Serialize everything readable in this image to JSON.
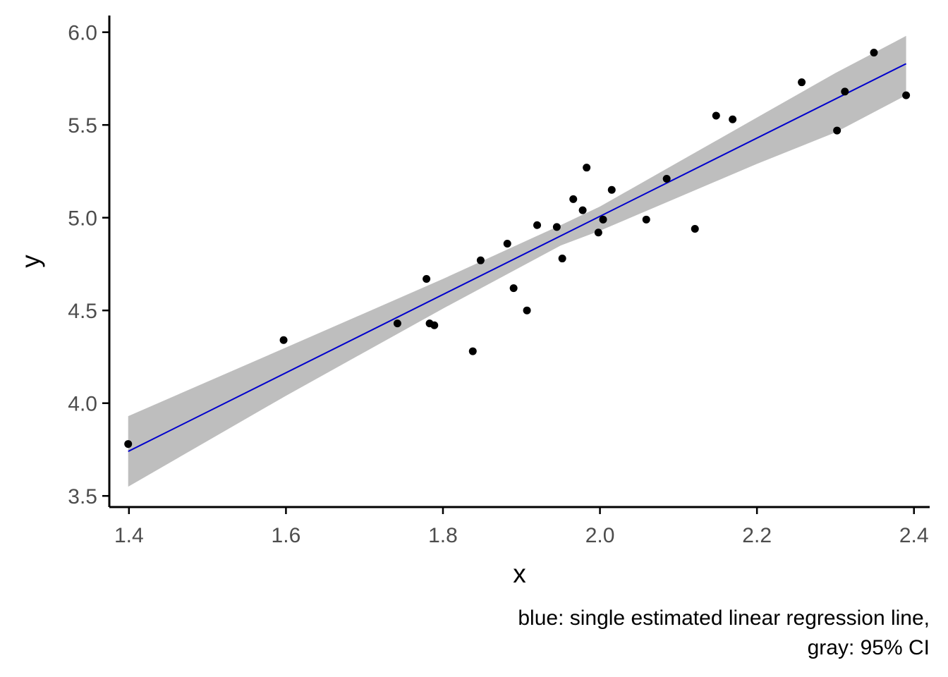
{
  "chart_data": {
    "type": "scatter",
    "title": "",
    "xlabel": "x",
    "ylabel": "y",
    "caption_lines": [
      "blue: single estimated linear regression line,",
      "gray: 95% CI"
    ],
    "xlim": [
      1.375,
      2.42
    ],
    "ylim": [
      3.44,
      6.09
    ],
    "x_ticks": [
      1.4,
      1.6,
      1.8,
      2.0,
      2.2,
      2.4
    ],
    "x_tick_labels": [
      "1.4",
      "1.6",
      "1.8",
      "2.0",
      "2.2",
      "2.4"
    ],
    "y_ticks": [
      3.5,
      4.0,
      4.5,
      5.0,
      5.5,
      6.0
    ],
    "y_tick_labels": [
      "3.5",
      "4.0",
      "4.5",
      "5.0",
      "5.5",
      "6.0"
    ],
    "grid": false,
    "colors": {
      "points": "#000000",
      "line": "#0000cc",
      "ribbon": "#bebebe",
      "axis": "#000000",
      "tick_text": "#4d4d4d"
    },
    "points": [
      {
        "x": 1.399,
        "y": 3.78
      },
      {
        "x": 1.597,
        "y": 4.34
      },
      {
        "x": 1.742,
        "y": 4.43
      },
      {
        "x": 1.779,
        "y": 4.67
      },
      {
        "x": 1.783,
        "y": 4.43
      },
      {
        "x": 1.789,
        "y": 4.42
      },
      {
        "x": 1.838,
        "y": 4.28
      },
      {
        "x": 1.848,
        "y": 4.77
      },
      {
        "x": 1.882,
        "y": 4.86
      },
      {
        "x": 1.89,
        "y": 4.62
      },
      {
        "x": 1.907,
        "y": 4.5
      },
      {
        "x": 1.92,
        "y": 4.96
      },
      {
        "x": 1.945,
        "y": 4.95
      },
      {
        "x": 1.952,
        "y": 4.78
      },
      {
        "x": 1.966,
        "y": 5.1
      },
      {
        "x": 1.978,
        "y": 5.04
      },
      {
        "x": 1.983,
        "y": 5.27
      },
      {
        "x": 1.998,
        "y": 4.92
      },
      {
        "x": 2.004,
        "y": 4.99
      },
      {
        "x": 2.015,
        "y": 5.15
      },
      {
        "x": 2.059,
        "y": 4.99
      },
      {
        "x": 2.085,
        "y": 5.21
      },
      {
        "x": 2.121,
        "y": 4.94
      },
      {
        "x": 2.148,
        "y": 5.55
      },
      {
        "x": 2.169,
        "y": 5.53
      },
      {
        "x": 2.257,
        "y": 5.73
      },
      {
        "x": 2.302,
        "y": 5.47
      },
      {
        "x": 2.312,
        "y": 5.68
      },
      {
        "x": 2.349,
        "y": 5.89
      },
      {
        "x": 2.39,
        "y": 5.66
      }
    ],
    "regression_line": [
      {
        "x": 1.399,
        "y": 3.74
      },
      {
        "x": 2.39,
        "y": 5.83
      }
    ],
    "confidence_band": [
      {
        "x": 1.399,
        "lower": 3.55,
        "upper": 3.93
      },
      {
        "x": 1.6,
        "lower": 4.04,
        "upper": 4.3
      },
      {
        "x": 1.8,
        "lower": 4.51,
        "upper": 4.67
      },
      {
        "x": 1.95,
        "lower": 4.85,
        "upper": 4.96
      },
      {
        "x": 2.0,
        "lower": 4.93,
        "upper": 5.06
      },
      {
        "x": 2.1,
        "lower": 5.11,
        "upper": 5.3
      },
      {
        "x": 2.2,
        "lower": 5.29,
        "upper": 5.54
      },
      {
        "x": 2.3,
        "lower": 5.46,
        "upper": 5.78
      },
      {
        "x": 2.39,
        "lower": 5.66,
        "upper": 5.98
      }
    ]
  }
}
